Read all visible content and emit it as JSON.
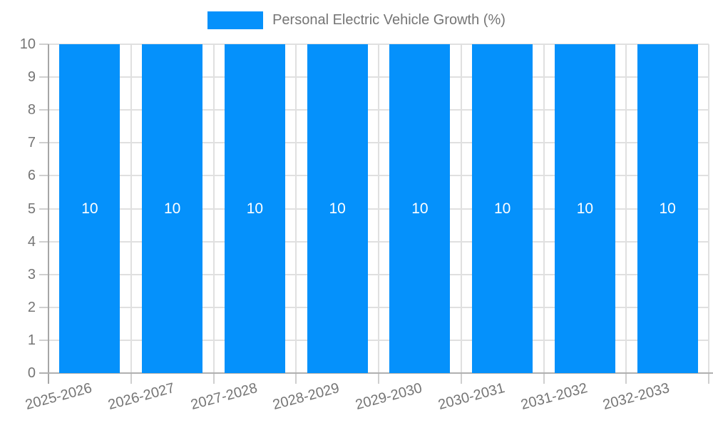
{
  "chart_data": {
    "type": "bar",
    "title": "Personal Electric Vehicle Growth (%)",
    "legend_position": "top",
    "grid": true,
    "categories": [
      "2025-2026",
      "2026-2027",
      "2027-2028",
      "2028-2029",
      "2029-2030",
      "2030-2031",
      "2031-2032",
      "2032-2033"
    ],
    "series": [
      {
        "name": "Personal Electric Vehicle Growth (%)",
        "values": [
          10,
          10,
          10,
          10,
          10,
          10,
          10,
          10
        ]
      }
    ],
    "bar_value_labels": [
      "10",
      "10",
      "10",
      "10",
      "10",
      "10",
      "10",
      "10"
    ],
    "ylim": [
      0,
      10
    ],
    "yticks": [
      0,
      1,
      2,
      3,
      4,
      5,
      6,
      7,
      8,
      9,
      10
    ],
    "xlabel": "",
    "ylabel": "",
    "x_label_rotation_deg": -15,
    "colors": {
      "bar": "#0591fb",
      "gridline": "#e0e0e0",
      "tick": "#cfcfcf",
      "axis": "#a6a6a6",
      "baseline": "#b0b0b0",
      "text": "#757575",
      "value_label": "#ffffff",
      "background": "#ffffff"
    }
  }
}
